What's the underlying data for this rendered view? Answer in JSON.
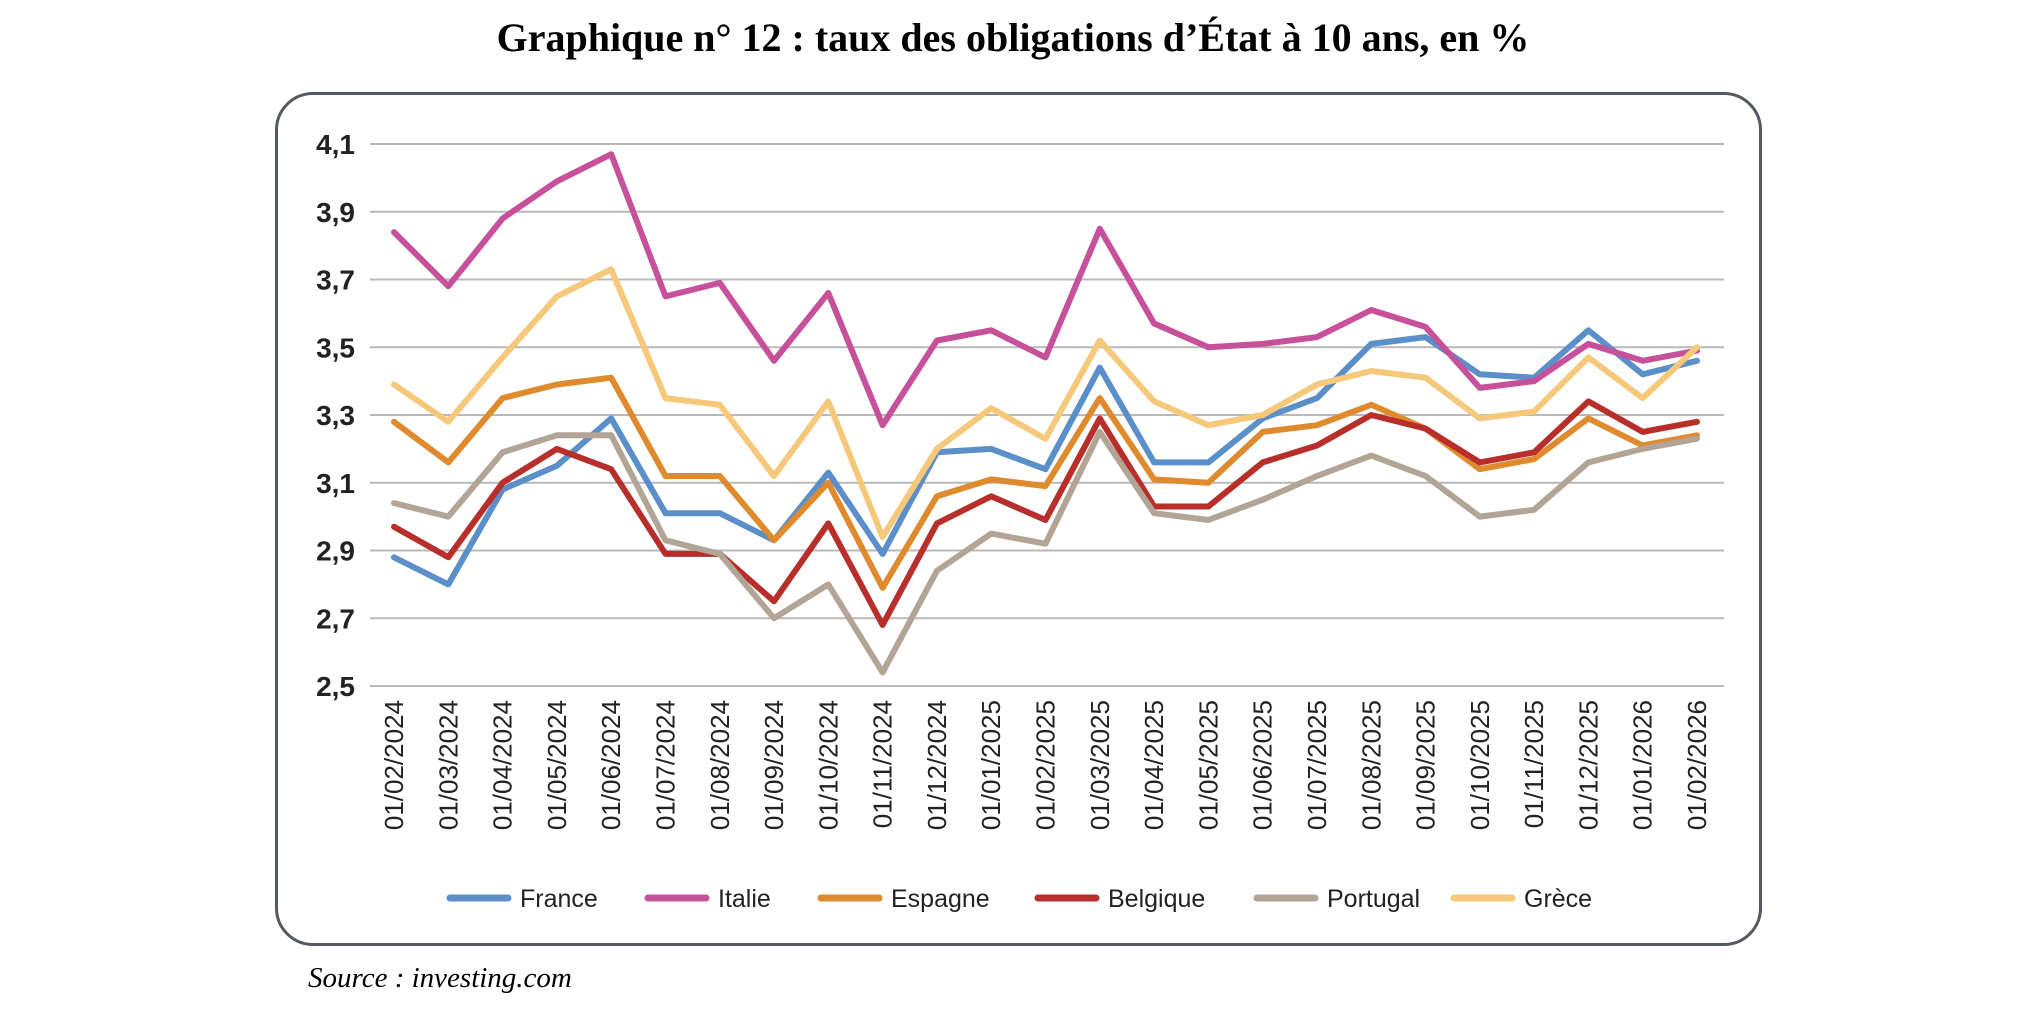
{
  "title": "Graphique n° 12 : taux des obligations d’État à 10 ans, en %",
  "source": "Source : investing.com",
  "chart_data": {
    "type": "line",
    "title": "Graphique n° 12 : taux des obligations d’État à 10 ans, en %",
    "xlabel": "",
    "ylabel": "",
    "ylim": [
      2.5,
      4.1
    ],
    "yticks": [
      "4,1",
      "3,9",
      "3,7",
      "3,5",
      "3,3",
      "3,1",
      "2,9",
      "2,7",
      "2,5"
    ],
    "ytick_values": [
      4.1,
      3.9,
      3.7,
      3.5,
      3.3,
      3.1,
      2.9,
      2.7,
      2.5
    ],
    "grid": true,
    "legend_position": "bottom",
    "categories": [
      "01/02/2024",
      "01/03/2024",
      "01/04/2024",
      "01/05/2024",
      "01/06/2024",
      "01/07/2024",
      "01/08/2024",
      "01/09/2024",
      "01/10/2024",
      "01/11/2024",
      "01/12/2024",
      "01/01/2025",
      "01/02/2025",
      "01/03/2025",
      "01/04/2025",
      "01/05/2025",
      "01/06/2025",
      "01/07/2025",
      "01/08/2025",
      "01/09/2025",
      "01/10/2025",
      "01/11/2025",
      "01/12/2025",
      "01/01/2026",
      "01/02/2026"
    ],
    "series": [
      {
        "name": "France",
        "color": "#5b8fc9",
        "values": [
          2.88,
          2.8,
          3.08,
          3.15,
          3.29,
          3.01,
          3.01,
          2.93,
          3.13,
          2.89,
          3.19,
          3.2,
          3.14,
          3.44,
          3.16,
          3.16,
          3.29,
          3.35,
          3.51,
          3.53,
          3.42,
          3.41,
          3.55,
          3.42,
          3.46
        ]
      },
      {
        "name": "Italie",
        "color": "#c6509a",
        "values": [
          3.84,
          3.68,
          3.88,
          3.99,
          4.07,
          3.65,
          3.69,
          3.46,
          3.66,
          3.27,
          3.52,
          3.55,
          3.47,
          3.85,
          3.57,
          3.5,
          3.51,
          3.53,
          3.61,
          3.56,
          3.38,
          3.4,
          3.51,
          3.46,
          3.49
        ]
      },
      {
        "name": "Espagne",
        "color": "#e08a2e",
        "values": [
          3.28,
          3.16,
          3.35,
          3.39,
          3.41,
          3.12,
          3.12,
          2.93,
          3.1,
          2.79,
          3.06,
          3.11,
          3.09,
          3.35,
          3.11,
          3.1,
          3.25,
          3.27,
          3.33,
          3.26,
          3.14,
          3.17,
          3.29,
          3.21,
          3.24
        ]
      },
      {
        "name": "Belgique",
        "color": "#b82e2a",
        "values": [
          2.97,
          2.88,
          3.1,
          3.2,
          3.14,
          2.89,
          2.89,
          2.75,
          2.98,
          2.68,
          2.98,
          3.06,
          2.99,
          3.29,
          3.03,
          3.03,
          3.16,
          3.21,
          3.3,
          3.26,
          3.16,
          3.19,
          3.34,
          3.25,
          3.28
        ]
      },
      {
        "name": "Portugal",
        "color": "#b3a596",
        "values": [
          3.04,
          3.0,
          3.19,
          3.24,
          3.24,
          2.93,
          2.89,
          2.7,
          2.8,
          2.54,
          2.84,
          2.95,
          2.92,
          3.25,
          3.01,
          2.99,
          3.05,
          3.12,
          3.18,
          3.12,
          3.0,
          3.02,
          3.16,
          3.2,
          3.23
        ]
      },
      {
        "name": "Grèce",
        "color": "#f5c87a",
        "values": [
          3.39,
          3.28,
          3.47,
          3.65,
          3.73,
          3.35,
          3.33,
          3.12,
          3.34,
          2.94,
          3.2,
          3.32,
          3.23,
          3.52,
          3.34,
          3.27,
          3.3,
          3.39,
          3.43,
          3.41,
          3.29,
          3.31,
          3.47,
          3.35,
          3.5
        ]
      }
    ]
  }
}
